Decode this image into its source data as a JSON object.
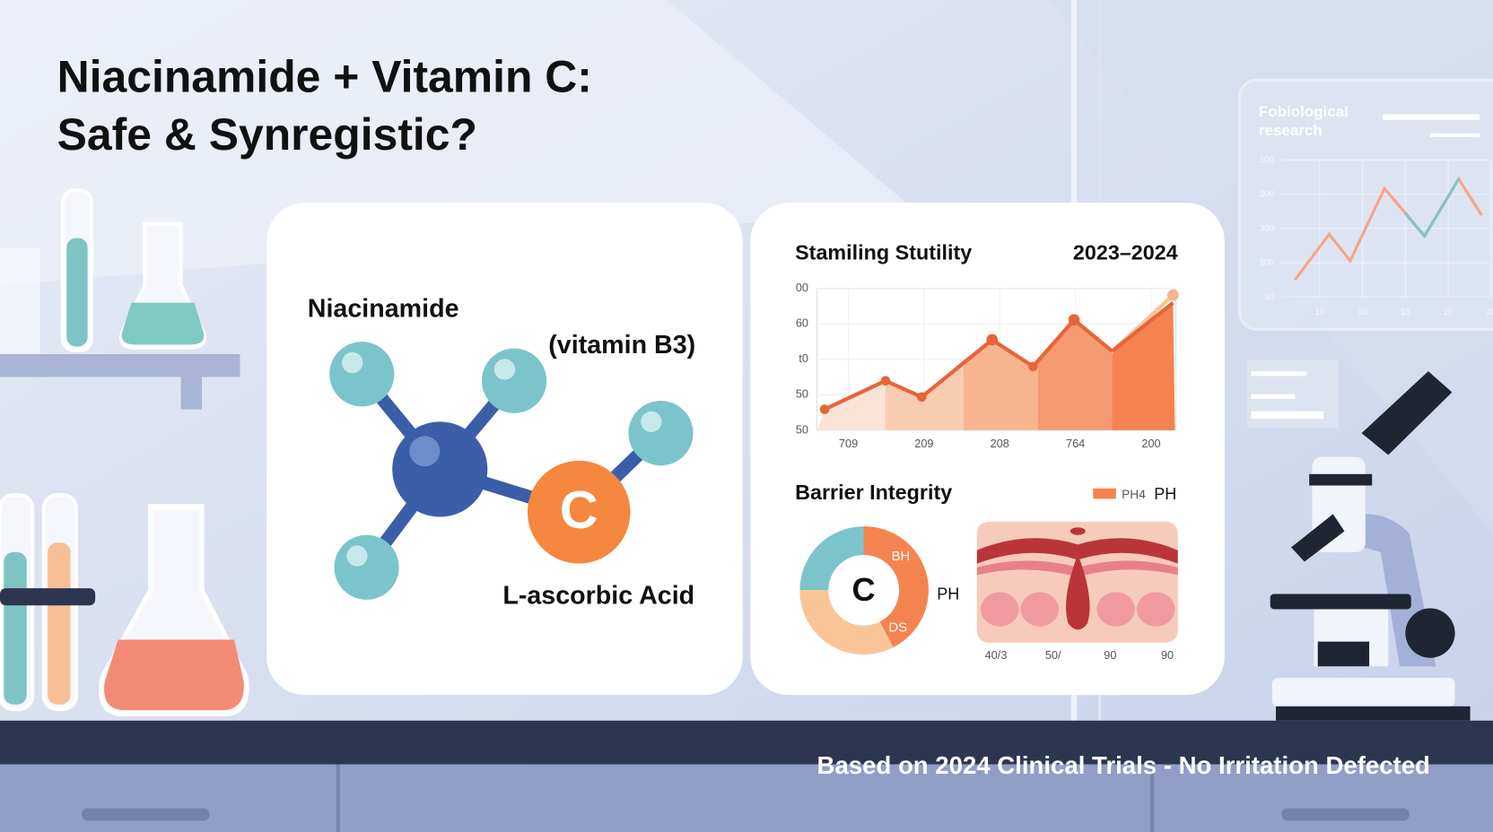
{
  "title": {
    "line1": "Niacinamide + Vitamin C:",
    "line2": "Safe & Synregistic?"
  },
  "molecule_card": {
    "name": "Niacinamide",
    "subname": "(vitamin B3)",
    "atom": "C",
    "acid": "L-ascorbic Acid"
  },
  "stability_card": {
    "title": "Stamiling Stutility",
    "years": "2023–2024",
    "y_labels": [
      "00",
      "60",
      "t0",
      "50",
      "50"
    ],
    "x_labels": [
      "709",
      "209",
      "208",
      "764",
      "200"
    ]
  },
  "barrier_card": {
    "title": "Barrier Integrity",
    "legend": [
      "PH4",
      "PH"
    ],
    "donut_center": "C",
    "donut_labels": [
      "BH",
      "DS"
    ],
    "donut_side": "PH",
    "x_labels": [
      "40/3",
      "50/",
      "90",
      "90"
    ]
  },
  "background_panel": {
    "title_line1": "Fobiological",
    "title_line2": "research",
    "y_labels": [
      "100",
      "200",
      "300",
      "500",
      "10"
    ],
    "x_labels": [
      "10",
      "10",
      "10",
      "20",
      "20"
    ]
  },
  "footer": "Based on 2024 Clinical Trials - No Irritation Defected"
}
